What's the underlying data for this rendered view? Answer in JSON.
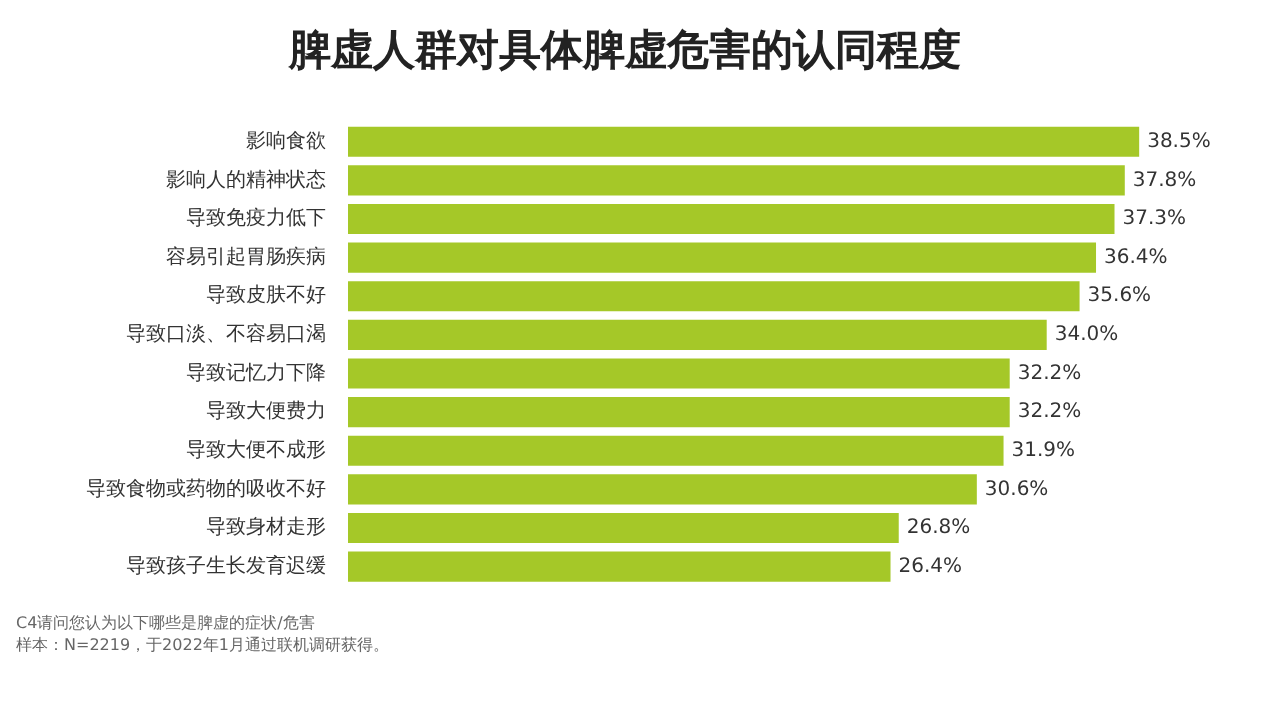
{
  "chart_data": {
    "type": "bar",
    "orientation": "horizontal",
    "title": "脾虚人群对具体脾虚危害的认同程度",
    "categories": [
      "影响食欲",
      "影响人的精神状态",
      "导致免疫力低下",
      "容易引起胃肠疾病",
      "导致皮肤不好",
      "导致口淡、不容易口渴",
      "导致记忆力下降",
      "导致大便费力",
      "导致大便不成形",
      "导致食物或药物的吸收不好",
      "导致身材走形",
      "导致孩子生长发育迟缓"
    ],
    "values": [
      38.5,
      37.8,
      37.3,
      36.4,
      35.6,
      34.0,
      32.2,
      32.2,
      31.9,
      30.6,
      26.8,
      26.4
    ],
    "value_labels": [
      "38.5%",
      "37.8%",
      "37.3%",
      "36.4%",
      "35.6%",
      "34.0%",
      "32.2%",
      "32.2%",
      "31.9%",
      "30.6%",
      "26.8%",
      "26.4%"
    ],
    "color": "#a5c828",
    "annotations": [
      "C4请问您认为以下哪些是脾虚的症状/危害",
      "样本：N=2219，于2022年1月通过联机调研获得。"
    ]
  }
}
